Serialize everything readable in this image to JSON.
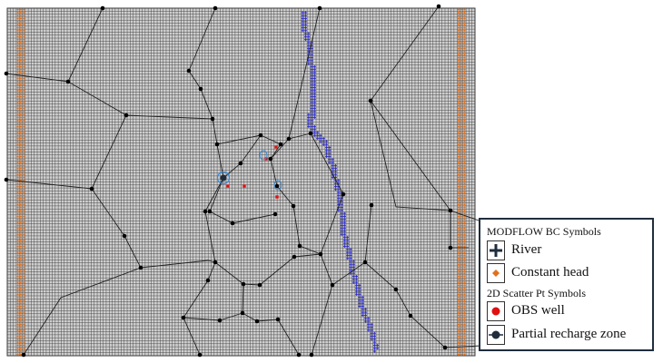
{
  "colors": {
    "background": "#cfcfcf",
    "grid_line": "#404040",
    "boundary_line": "#222222",
    "vertex": "#000000",
    "river": "#2b2bd0",
    "constant_head": "#e2701c",
    "obs_well": "#e01010",
    "recharge_marker": "#1f2d3d",
    "circle_outline": "#3a8ad6"
  },
  "legend": {
    "title_bc": "MODFLOW BC Symbols",
    "title_scatter": "2D Scatter Pt Symbols",
    "items": [
      {
        "label": "River",
        "icon": "river-plus-icon"
      },
      {
        "label": "Constant head",
        "icon": "constant-head-diamond-icon"
      },
      {
        "label": "OBS well",
        "icon": "obs-well-dot-icon"
      },
      {
        "label": "Partial recharge zone",
        "icon": "partial-recharge-zone-icon"
      }
    ]
  },
  "river_cells": [
    [
      98,
      1
    ],
    [
      99,
      1
    ],
    [
      98,
      2
    ],
    [
      99,
      2
    ],
    [
      98,
      3
    ],
    [
      99,
      3
    ],
    [
      98,
      4
    ],
    [
      99,
      4
    ],
    [
      98,
      5
    ],
    [
      99,
      5
    ],
    [
      98,
      6
    ],
    [
      99,
      6
    ],
    [
      98,
      7
    ],
    [
      99,
      7
    ],
    [
      99,
      8
    ],
    [
      100,
      8
    ],
    [
      99,
      9
    ],
    [
      100,
      9
    ],
    [
      99,
      10
    ],
    [
      100,
      10
    ],
    [
      100,
      11
    ],
    [
      101,
      11
    ],
    [
      100,
      12
    ],
    [
      101,
      12
    ],
    [
      100,
      13
    ],
    [
      101,
      13
    ],
    [
      100,
      14
    ],
    [
      101,
      14
    ],
    [
      100,
      15
    ],
    [
      101,
      15
    ],
    [
      100,
      16
    ],
    [
      101,
      16
    ],
    [
      100,
      17
    ],
    [
      101,
      17
    ],
    [
      100,
      18
    ],
    [
      101,
      18
    ],
    [
      101,
      19
    ],
    [
      102,
      19
    ],
    [
      101,
      20
    ],
    [
      102,
      20
    ],
    [
      101,
      21
    ],
    [
      102,
      21
    ],
    [
      101,
      22
    ],
    [
      102,
      22
    ],
    [
      101,
      23
    ],
    [
      102,
      23
    ],
    [
      101,
      24
    ],
    [
      102,
      24
    ],
    [
      101,
      25
    ],
    [
      102,
      25
    ],
    [
      101,
      26
    ],
    [
      102,
      26
    ],
    [
      101,
      27
    ],
    [
      102,
      27
    ],
    [
      101,
      28
    ],
    [
      102,
      28
    ],
    [
      101,
      29
    ],
    [
      102,
      29
    ],
    [
      101,
      30
    ],
    [
      102,
      30
    ],
    [
      101,
      31
    ],
    [
      102,
      31
    ],
    [
      101,
      32
    ],
    [
      102,
      32
    ],
    [
      101,
      33
    ],
    [
      102,
      33
    ],
    [
      101,
      34
    ],
    [
      102,
      34
    ],
    [
      100,
      35
    ],
    [
      101,
      35
    ],
    [
      102,
      35
    ],
    [
      100,
      36
    ],
    [
      101,
      36
    ],
    [
      102,
      36
    ],
    [
      100,
      37
    ],
    [
      101,
      37
    ],
    [
      100,
      38
    ],
    [
      101,
      38
    ],
    [
      100,
      39
    ],
    [
      101,
      39
    ],
    [
      102,
      39
    ],
    [
      101,
      40
    ],
    [
      102,
      40
    ],
    [
      101,
      41
    ],
    [
      102,
      41
    ],
    [
      103,
      41
    ],
    [
      102,
      42
    ],
    [
      103,
      42
    ],
    [
      104,
      42
    ],
    [
      103,
      43
    ],
    [
      104,
      43
    ],
    [
      105,
      43
    ],
    [
      104,
      44
    ],
    [
      105,
      44
    ],
    [
      106,
      44
    ],
    [
      105,
      45
    ],
    [
      106,
      45
    ],
    [
      106,
      46
    ],
    [
      107,
      46
    ],
    [
      106,
      47
    ],
    [
      107,
      47
    ],
    [
      106,
      48
    ],
    [
      107,
      48
    ],
    [
      106,
      49
    ],
    [
      107,
      49
    ],
    [
      107,
      50
    ],
    [
      108,
      50
    ],
    [
      107,
      51
    ],
    [
      108,
      51
    ],
    [
      108,
      52
    ],
    [
      109,
      52
    ],
    [
      108,
      53
    ],
    [
      109,
      53
    ],
    [
      108,
      54
    ],
    [
      109,
      54
    ],
    [
      108,
      55
    ],
    [
      109,
      55
    ],
    [
      108,
      56
    ],
    [
      109,
      56
    ],
    [
      109,
      57
    ],
    [
      110,
      57
    ],
    [
      109,
      58
    ],
    [
      110,
      58
    ],
    [
      109,
      59
    ],
    [
      110,
      59
    ],
    [
      109,
      60
    ],
    [
      110,
      60
    ],
    [
      110,
      61
    ],
    [
      111,
      61
    ],
    [
      110,
      62
    ],
    [
      111,
      62
    ],
    [
      110,
      63
    ],
    [
      111,
      63
    ],
    [
      110,
      64
    ],
    [
      111,
      64
    ],
    [
      110,
      65
    ],
    [
      111,
      65
    ],
    [
      110,
      66
    ],
    [
      111,
      66
    ],
    [
      110,
      67
    ],
    [
      111,
      67
    ],
    [
      111,
      68
    ],
    [
      112,
      68
    ],
    [
      111,
      69
    ],
    [
      112,
      69
    ],
    [
      111,
      70
    ],
    [
      112,
      70
    ],
    [
      111,
      71
    ],
    [
      112,
      71
    ],
    [
      111,
      72
    ],
    [
      112,
      72
    ],
    [
      111,
      73
    ],
    [
      112,
      73
    ],
    [
      111,
      74
    ],
    [
      112,
      74
    ],
    [
      111,
      75
    ],
    [
      112,
      75
    ],
    [
      112,
      76
    ],
    [
      113,
      76
    ],
    [
      112,
      77
    ],
    [
      113,
      77
    ],
    [
      112,
      78
    ],
    [
      113,
      78
    ],
    [
      112,
      79
    ],
    [
      113,
      79
    ],
    [
      113,
      80
    ],
    [
      114,
      80
    ],
    [
      113,
      81
    ],
    [
      114,
      81
    ],
    [
      113,
      82
    ],
    [
      114,
      82
    ],
    [
      113,
      83
    ],
    [
      114,
      83
    ],
    [
      114,
      84
    ],
    [
      115,
      84
    ],
    [
      114,
      85
    ],
    [
      115,
      85
    ],
    [
      114,
      86
    ],
    [
      115,
      86
    ],
    [
      114,
      87
    ],
    [
      115,
      87
    ],
    [
      114,
      88
    ],
    [
      115,
      88
    ],
    [
      115,
      89
    ],
    [
      116,
      89
    ],
    [
      115,
      90
    ],
    [
      116,
      90
    ],
    [
      115,
      91
    ],
    [
      116,
      91
    ],
    [
      116,
      92
    ],
    [
      117,
      92
    ],
    [
      116,
      93
    ],
    [
      117,
      93
    ],
    [
      116,
      94
    ],
    [
      117,
      94
    ],
    [
      116,
      95
    ],
    [
      117,
      95
    ],
    [
      117,
      96
    ],
    [
      118,
      96
    ],
    [
      117,
      97
    ],
    [
      118,
      97
    ],
    [
      117,
      98
    ],
    [
      118,
      98
    ],
    [
      117,
      99
    ],
    [
      118,
      99
    ],
    [
      118,
      100
    ],
    [
      119,
      100
    ],
    [
      118,
      101
    ],
    [
      119,
      101
    ],
    [
      118,
      102
    ],
    [
      119,
      102
    ],
    [
      119,
      103
    ],
    [
      120,
      103
    ],
    [
      119,
      104
    ],
    [
      120,
      104
    ],
    [
      120,
      105
    ],
    [
      121,
      105
    ],
    [
      120,
      106
    ],
    [
      121,
      106
    ],
    [
      120,
      107
    ],
    [
      121,
      107
    ],
    [
      121,
      108
    ],
    [
      122,
      108
    ],
    [
      121,
      109
    ],
    [
      122,
      109
    ],
    [
      121,
      110
    ],
    [
      122,
      110
    ],
    [
      122,
      111
    ],
    [
      122,
      112
    ],
    [
      123,
      112
    ],
    [
      122,
      113
    ],
    [
      123,
      113
    ],
    [
      122,
      114
    ]
  ],
  "boundary_lines": [
    [
      [
        113,
        9
      ],
      [
        75,
        90
      ],
      [
        7,
        81
      ]
    ],
    [
      [
        237,
        9
      ],
      [
        208,
        78
      ]
    ],
    [
      [
        352,
        9
      ],
      [
        318,
        153
      ]
    ],
    [
      [
        483,
        7
      ],
      [
        408,
        111
      ]
    ],
    [
      [
        75,
        90
      ],
      [
        139,
        127
      ],
      [
        101,
        208
      ],
      [
        7,
        198
      ]
    ],
    [
      [
        208,
        78
      ],
      [
        221,
        98
      ],
      [
        234,
        131
      ],
      [
        239,
        159
      ],
      [
        287,
        149
      ],
      [
        309,
        159
      ]
    ],
    [
      [
        139,
        127
      ],
      [
        234,
        131
      ]
    ],
    [
      [
        239,
        159
      ],
      [
        246,
        196
      ],
      [
        226,
        233
      ],
      [
        237,
        289
      ],
      [
        229,
        309
      ],
      [
        202,
        350
      ],
      [
        220,
        391
      ]
    ],
    [
      [
        408,
        111
      ],
      [
        496,
        232
      ],
      [
        530,
        244
      ]
    ],
    [
      [
        408,
        111
      ],
      [
        436,
        228
      ],
      [
        496,
        232
      ],
      [
        496,
        273
      ]
    ],
    [
      [
        287,
        149
      ],
      [
        265,
        180
      ],
      [
        246,
        196
      ]
    ],
    [
      [
        309,
        159
      ],
      [
        298,
        175
      ],
      [
        305,
        205
      ],
      [
        323,
        227
      ]
    ],
    [
      [
        101,
        208
      ],
      [
        137,
        260
      ]
    ],
    [
      [
        137,
        260
      ],
      [
        155,
        295
      ],
      [
        229,
        287
      ],
      [
        237,
        289
      ]
    ],
    [
      [
        237,
        289
      ],
      [
        268,
        313
      ],
      [
        286,
        314
      ],
      [
        324,
        283
      ]
    ],
    [
      [
        268,
        313
      ],
      [
        267,
        345
      ],
      [
        283,
        354
      ],
      [
        306,
        352
      ],
      [
        329,
        391
      ]
    ],
    [
      [
        155,
        295
      ],
      [
        67,
        328
      ],
      [
        26,
        391
      ]
    ],
    [
      [
        202,
        350
      ],
      [
        242,
        353
      ],
      [
        267,
        345
      ]
    ],
    [
      [
        378,
        214
      ],
      [
        353,
        280
      ],
      [
        366,
        314
      ],
      [
        402,
        289
      ],
      [
        409,
        226
      ]
    ],
    [
      [
        353,
        280
      ],
      [
        324,
        283
      ]
    ],
    [
      [
        366,
        314
      ],
      [
        343,
        391
      ]
    ],
    [
      [
        402,
        289
      ],
      [
        436,
        319
      ],
      [
        452,
        348
      ],
      [
        490,
        383
      ],
      [
        530,
        381
      ]
    ],
    [
      [
        496,
        273
      ],
      [
        516,
        273
      ]
    ],
    [
      [
        298,
        175
      ],
      [
        318,
        153
      ],
      [
        342,
        147
      ],
      [
        378,
        214
      ]
    ],
    [
      [
        246,
        196
      ],
      [
        231,
        233
      ],
      [
        256,
        246
      ],
      [
        303,
        236
      ]
    ],
    [
      [
        323,
        227
      ],
      [
        330,
        271
      ],
      [
        353,
        280
      ]
    ]
  ],
  "vertices": [
    [
      113,
      9
    ],
    [
      237,
      9
    ],
    [
      352,
      9
    ],
    [
      483,
      7
    ],
    [
      7,
      81
    ],
    [
      75,
      90
    ],
    [
      208,
      78
    ],
    [
      139,
      127
    ],
    [
      221,
      98
    ],
    [
      234,
      131
    ],
    [
      318,
      153
    ],
    [
      408,
      111
    ],
    [
      239,
      159
    ],
    [
      287,
      149
    ],
    [
      309,
      159
    ],
    [
      265,
      180
    ],
    [
      298,
      175
    ],
    [
      101,
      208
    ],
    [
      7,
      198
    ],
    [
      226,
      233
    ],
    [
      231,
      233
    ],
    [
      256,
      246
    ],
    [
      303,
      236
    ],
    [
      323,
      227
    ],
    [
      305,
      205
    ],
    [
      137,
      260
    ],
    [
      155,
      295
    ],
    [
      237,
      289
    ],
    [
      229,
      309
    ],
    [
      268,
      313
    ],
    [
      286,
      314
    ],
    [
      324,
      283
    ],
    [
      202,
      350
    ],
    [
      267,
      345
    ],
    [
      283,
      354
    ],
    [
      306,
      352
    ],
    [
      242,
      353
    ],
    [
      330,
      271
    ],
    [
      353,
      280
    ],
    [
      366,
      314
    ],
    [
      402,
      289
    ],
    [
      496,
      232
    ],
    [
      496,
      273
    ],
    [
      436,
      319
    ],
    [
      452,
      348
    ],
    [
      490,
      383
    ],
    [
      220,
      391
    ],
    [
      26,
      391
    ],
    [
      329,
      391
    ],
    [
      343,
      391
    ],
    [
      378,
      214
    ],
    [
      342,
      147
    ],
    [
      409,
      226
    ]
  ],
  "obs_wells": [
    [
      304,
      162
    ],
    [
      269,
      205
    ],
    [
      251,
      205
    ],
    [
      305,
      217
    ],
    [
      293,
      175
    ]
  ],
  "recharge_zones": [
    {
      "center": [
        246,
        196
      ],
      "type": "big"
    },
    {
      "center": [
        290,
        171
      ],
      "type": "small"
    },
    {
      "center": [
        306,
        204
      ],
      "type": "small"
    }
  ]
}
